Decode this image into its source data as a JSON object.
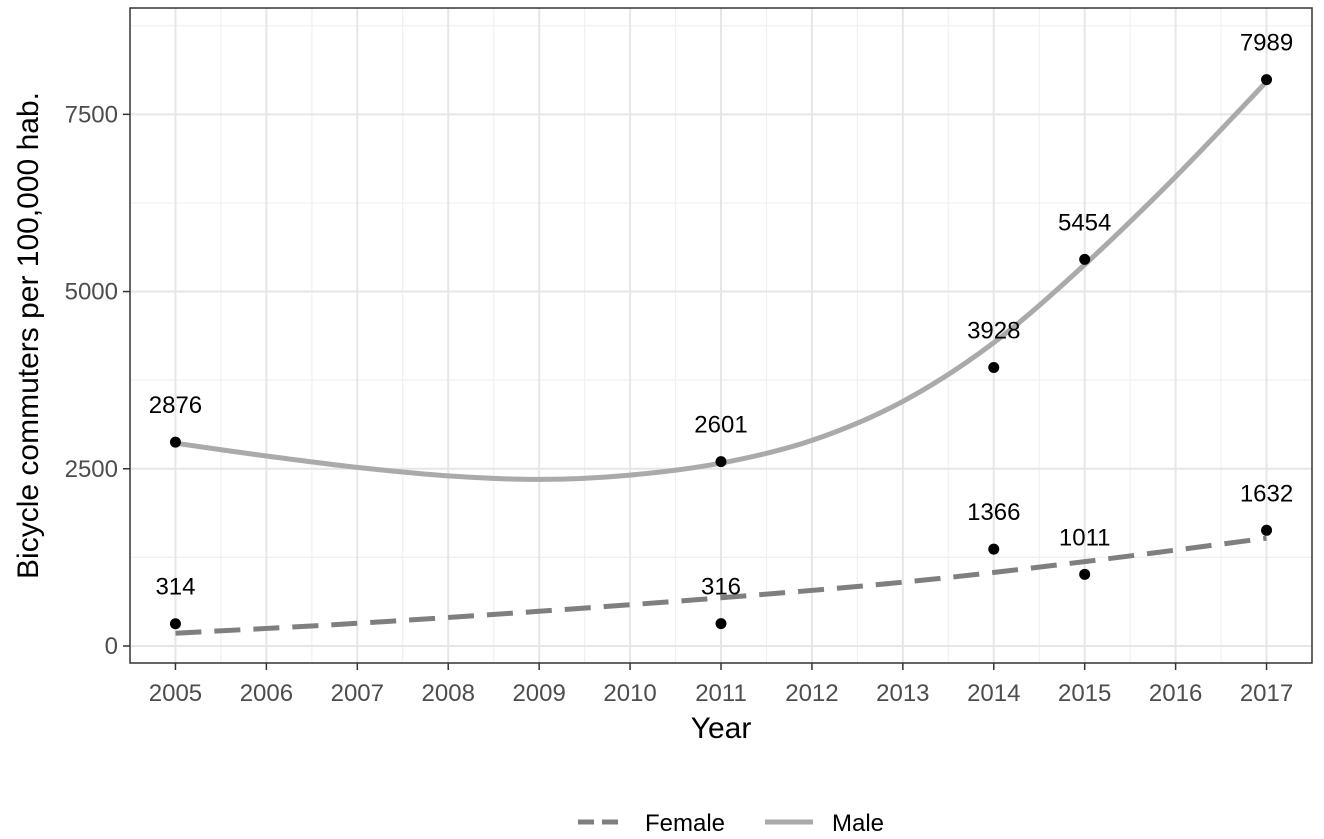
{
  "chart_data": {
    "type": "scatter",
    "xlabel": "Year",
    "ylabel": "Bicycle commuters per 100,000 hab.",
    "xlim": [
      2004.5,
      2017.5
    ],
    "ylim": [
      -240,
      9000
    ],
    "x_ticks": [
      2005,
      2006,
      2007,
      2008,
      2009,
      2010,
      2011,
      2012,
      2013,
      2014,
      2015,
      2016,
      2017
    ],
    "y_ticks": [
      0,
      2500,
      5000,
      7500
    ],
    "y_minor_ticks": [
      1250,
      3750,
      6250,
      8750
    ],
    "grid": true,
    "legend_position": "bottom",
    "series": [
      {
        "name": "Female",
        "line_style": "dashed",
        "color": "#7f7f7f",
        "points": [
          {
            "x": 2005,
            "y": 314,
            "label": "314"
          },
          {
            "x": 2011,
            "y": 316,
            "label": "316"
          },
          {
            "x": 2014,
            "y": 1366,
            "label": "1366"
          },
          {
            "x": 2015,
            "y": 1011,
            "label": "1011"
          },
          {
            "x": 2017,
            "y": 1632,
            "label": "1632"
          }
        ],
        "fit": [
          {
            "x": 2005,
            "y": 180
          },
          {
            "x": 2007,
            "y": 320
          },
          {
            "x": 2009,
            "y": 490
          },
          {
            "x": 2011,
            "y": 680
          },
          {
            "x": 2013,
            "y": 900
          },
          {
            "x": 2015,
            "y": 1190
          },
          {
            "x": 2017,
            "y": 1520
          }
        ]
      },
      {
        "name": "Male",
        "line_style": "solid",
        "color": "#aaaaaa",
        "points": [
          {
            "x": 2005,
            "y": 2876,
            "label": "2876"
          },
          {
            "x": 2011,
            "y": 2601,
            "label": "2601"
          },
          {
            "x": 2014,
            "y": 3928,
            "label": "3928"
          },
          {
            "x": 2015,
            "y": 5454,
            "label": "5454"
          },
          {
            "x": 2017,
            "y": 7989,
            "label": "7989"
          }
        ],
        "fit": [
          {
            "x": 2005,
            "y": 2860
          },
          {
            "x": 2006,
            "y": 2680
          },
          {
            "x": 2007,
            "y": 2520
          },
          {
            "x": 2008,
            "y": 2400
          },
          {
            "x": 2009,
            "y": 2350
          },
          {
            "x": 2010,
            "y": 2410
          },
          {
            "x": 2011,
            "y": 2580
          },
          {
            "x": 2012,
            "y": 2900
          },
          {
            "x": 2013,
            "y": 3450
          },
          {
            "x": 2014,
            "y": 4280
          },
          {
            "x": 2015,
            "y": 5380
          },
          {
            "x": 2016,
            "y": 6620
          },
          {
            "x": 2017,
            "y": 7960
          }
        ]
      }
    ]
  }
}
